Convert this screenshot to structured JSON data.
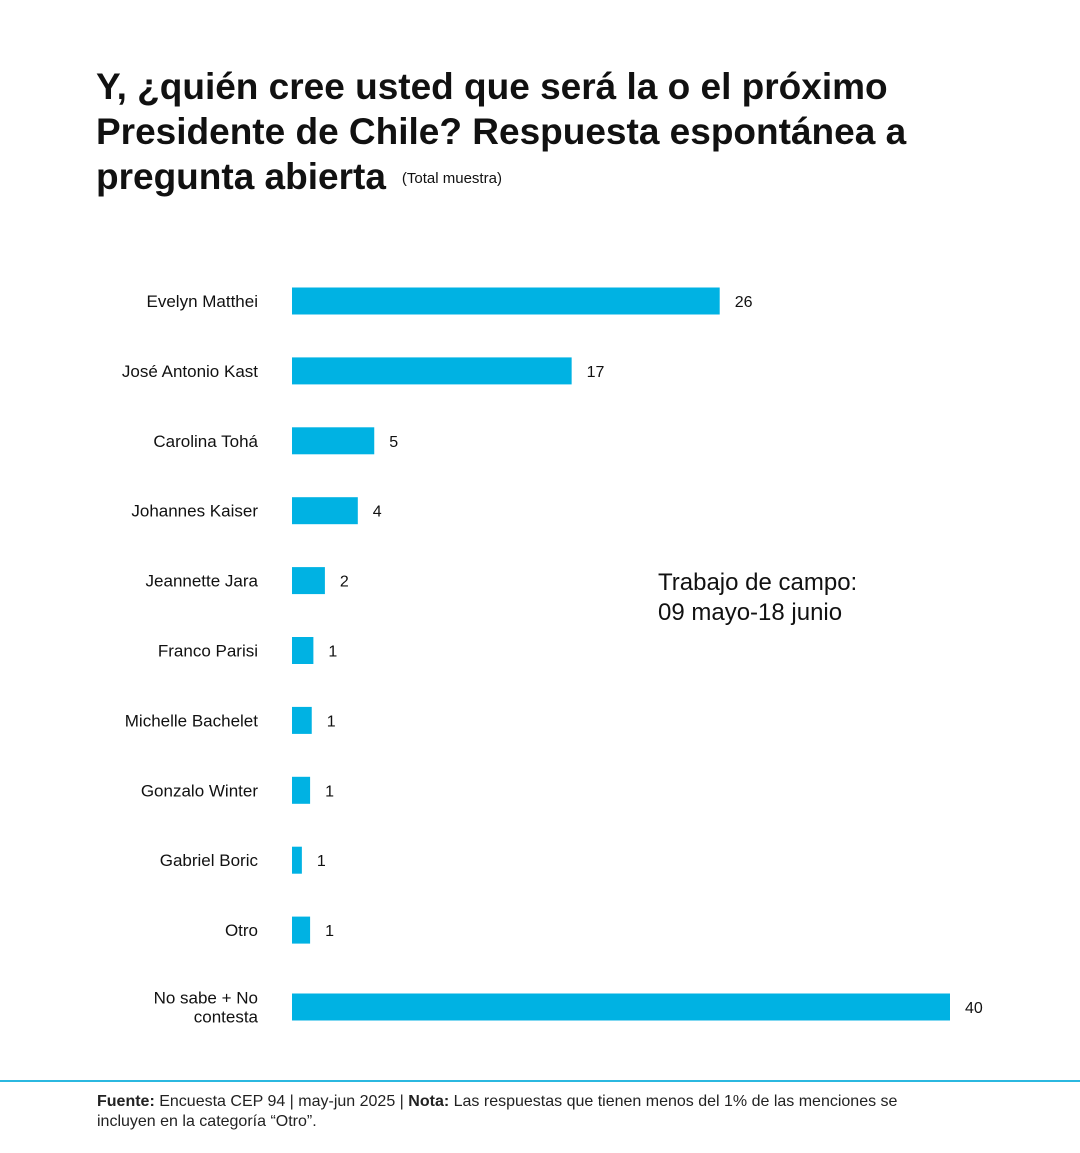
{
  "title": {
    "main": "Y, ¿quién cree usted que será la o el próximo Presidente de Chile? Respuesta espontánea a pregunta abierta",
    "sub": "(Total muestra)"
  },
  "annotation": {
    "line1": "Trabajo de campo:",
    "line2": "09 mayo-18 junio"
  },
  "footer": {
    "source_label": "Fuente:",
    "source_text": " Encuesta CEP 94 | may-jun 2025 | ",
    "note_label": "Nota:",
    "note_text": " Las respuestas que tienen menos del 1% de las menciones se incluyen en la categoría “Otro”."
  },
  "colors": {
    "bar": "#00B2E3",
    "divider": "#2BB8E0",
    "text": "#111111"
  },
  "chart_data": {
    "type": "bar",
    "orientation": "horizontal",
    "categories": [
      [
        "Evelyn Matthei"
      ],
      [
        "José Antonio Kast"
      ],
      [
        "Carolina Tohá"
      ],
      [
        "Johannes Kaiser"
      ],
      [
        "Jeannette Jara"
      ],
      [
        "Franco Parisi"
      ],
      [
        "Michelle Bachelet"
      ],
      [
        "Gonzalo Winter"
      ],
      [
        "Gabriel Boric"
      ],
      [
        "Otro"
      ],
      [
        "No sabe + No",
        "contesta"
      ]
    ],
    "values": [
      26,
      17,
      5,
      4,
      2,
      1.3,
      1.2,
      1.1,
      0.6,
      1.1,
      40
    ],
    "value_labels": [
      "26",
      "17",
      "5",
      "4",
      "2",
      "1",
      "1",
      "1",
      "1",
      "1",
      "40"
    ],
    "xlim": [
      0,
      40
    ],
    "grid": false,
    "legend": "none"
  }
}
